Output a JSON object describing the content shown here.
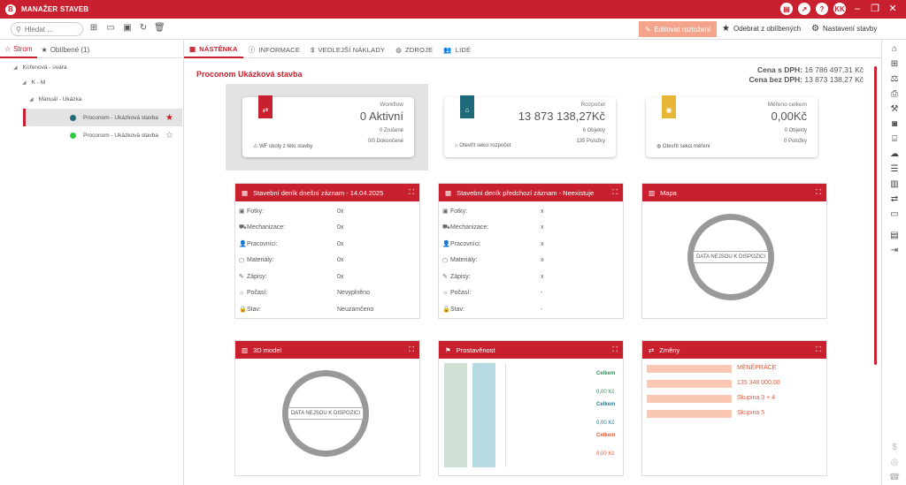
{
  "app": {
    "title": "MANAŽER STAVEB",
    "logo": "B",
    "user_initials": "KK"
  },
  "toolbar": {
    "search_placeholder": "Hledat ...",
    "edit_layout": "Editovat rozložení",
    "remove_favorite": "Odebrat z oblíbených",
    "settings": "Nastavení stavby"
  },
  "left_tabs": [
    {
      "label": "Strom"
    },
    {
      "label": "Oblíbené (1)"
    }
  ],
  "tree": [
    {
      "label": "Kořenová - úvara"
    },
    {
      "label": "K - M"
    },
    {
      "label": "Manuál - Ukázka"
    },
    {
      "label": "Proconom  -  Ukázková stavba"
    },
    {
      "label": "Proconom  -  Ukázková stavba"
    }
  ],
  "tabs": [
    {
      "label": "NÁSTĚNKA"
    },
    {
      "label": "INFORMACE"
    },
    {
      "label": "VEDLEJŠÍ NÁKLADY"
    },
    {
      "label": "ZDROJE"
    },
    {
      "label": "LIDÉ"
    }
  ],
  "project": {
    "title": "Proconom Ukázková stavba",
    "price_with_vat_label": "Cena s DPH:",
    "price_with_vat": "16 786 497,31 Kč",
    "price_without_vat_label": "Cena bez DPH:",
    "price_without_vat": "13 873 138,27 Kč"
  },
  "cards": {
    "workflow": {
      "label": "Workflow",
      "big": "0 Aktivní",
      "s1": "0 Zrušené",
      "s2": "0/0 Dokončené",
      "link": "WF úkoly z této stavby"
    },
    "budget": {
      "label": "Rozpočet",
      "big": "13 873 138,27Kč",
      "s1": "6 Objekty",
      "s2": "135 Položky",
      "link": "Otevřít sekci rozpočet"
    },
    "measured": {
      "label": "Měřeno celkem",
      "big": "0,00Kč",
      "s1": "0 Objekty",
      "s2": "0 Položky",
      "link": "Otevřít sekci měření"
    }
  },
  "diary_today": {
    "title": "Stavební deník dnešní záznam - 14.04.2025",
    "rows": [
      {
        "label": "Fotky:",
        "value": "0x"
      },
      {
        "label": "Mechanizace:",
        "value": "0x"
      },
      {
        "label": "Pracovníci:",
        "value": "0x"
      },
      {
        "label": "Materiály:",
        "value": "0x"
      },
      {
        "label": "Zápisy:",
        "value": "0x"
      },
      {
        "label": "Počasí:",
        "value": "Nevyplněno"
      },
      {
        "label": "Stav:",
        "value": "Neuzamčeno"
      }
    ]
  },
  "diary_prev": {
    "title": "Stavební deník předchozí záznam - Neexistuje",
    "rows": [
      {
        "label": "Fotky:",
        "value": "x"
      },
      {
        "label": "Mechanizace:",
        "value": "x"
      },
      {
        "label": "Pracovníci:",
        "value": "x"
      },
      {
        "label": "Materiály:",
        "value": "x"
      },
      {
        "label": "Zápisy:",
        "value": "x"
      },
      {
        "label": "Počasí:",
        "value": "-"
      },
      {
        "label": "Stav:",
        "value": "-"
      }
    ]
  },
  "map": {
    "title": "Mapa",
    "nodata": "DATA NEJSOU K DISPOZICI"
  },
  "model3d": {
    "title": "3D model",
    "nodata": "DATA NEJSOU K DISPOZICI"
  },
  "progress": {
    "title": "Prostavěnost",
    "items": [
      {
        "label": "Celkem",
        "value": "0,00 Kč",
        "color": "#3a8a5a"
      },
      {
        "label": "Celkem",
        "value": "0,00 Kč",
        "color": "#2b7a8c"
      },
      {
        "label": "Celkem",
        "value": "0,00 Kč",
        "color": "#e45b3a"
      }
    ]
  },
  "changes": {
    "title": "Změny",
    "items": [
      "MÉNĚPRÁCE",
      "135 348 000,00",
      "Skupina 3 + 4",
      "Skupina 5"
    ]
  },
  "colors": {
    "accent": "#c8202e",
    "edit_button": "#f4a48a"
  }
}
